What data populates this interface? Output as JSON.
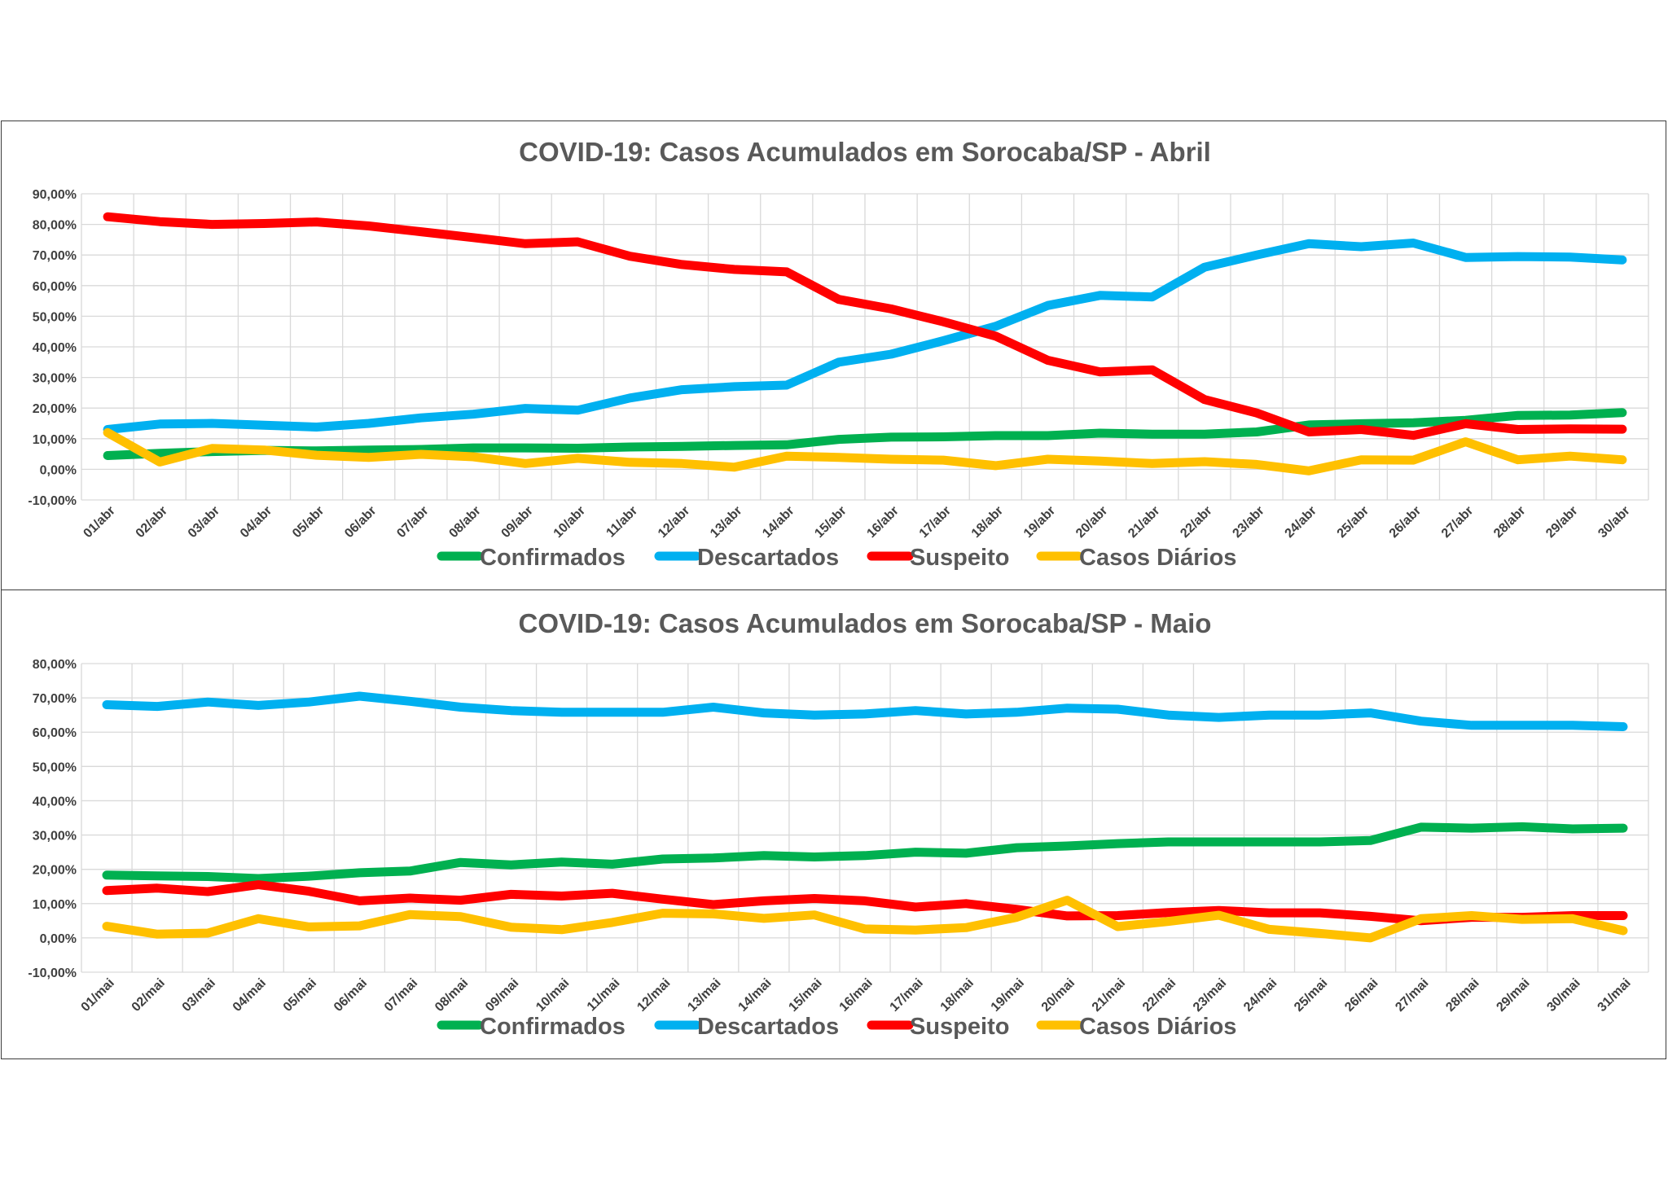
{
  "chart_data": [
    {
      "type": "line",
      "title": "COVID-19: Casos Acumulados em Sorocaba/SP - Abril",
      "xlabel": "",
      "ylabel": "",
      "ylim": [
        -10,
        90
      ],
      "yticks": [
        "90,00%",
        "80,00%",
        "70,00%",
        "60,00%",
        "50,00%",
        "40,00%",
        "30,00%",
        "20,00%",
        "10,00%",
        "0,00%",
        "-10,00%"
      ],
      "grid": true,
      "legend": "bottom",
      "categories": [
        "01/abr",
        "02/abr",
        "03/abr",
        "04/abr",
        "05/abr",
        "06/abr",
        "07/abr",
        "08/abr",
        "09/abr",
        "10/abr",
        "11/abr",
        "12/abr",
        "13/abr",
        "14/abr",
        "15/abr",
        "16/abr",
        "17/abr",
        "18/abr",
        "19/abr",
        "20/abr",
        "21/abr",
        "22/abr",
        "23/abr",
        "24/abr",
        "25/abr",
        "26/abr",
        "27/abr",
        "28/abr",
        "29/abr",
        "30/abr"
      ],
      "series": [
        {
          "name": "Confirmados",
          "color": "#00b050",
          "values": [
            4.5,
            5.2,
            5.8,
            6.2,
            6.0,
            6.3,
            6.5,
            7.0,
            7.0,
            6.9,
            7.3,
            7.5,
            7.8,
            8.0,
            9.8,
            10.5,
            10.6,
            11.0,
            11.0,
            11.8,
            11.5,
            11.5,
            12.2,
            14.5,
            14.9,
            15.2,
            16.0,
            17.6,
            17.7,
            18.5
          ]
        },
        {
          "name": "Descartados",
          "color": "#00b0f0",
          "values": [
            13.0,
            14.8,
            15.0,
            14.4,
            13.8,
            15.0,
            16.8,
            18.0,
            19.9,
            19.3,
            23.3,
            26.0,
            27.0,
            27.5,
            35.0,
            37.6,
            42.0,
            46.7,
            53.5,
            56.8,
            56.3,
            66.0,
            70.0,
            73.7,
            72.7,
            73.9,
            69.2,
            69.5,
            69.3,
            68.4
          ]
        },
        {
          "name": "Suspeito",
          "color": "#ff0000",
          "values": [
            82.5,
            80.9,
            80.0,
            80.3,
            80.8,
            79.5,
            77.6,
            75.7,
            73.7,
            74.3,
            69.6,
            66.9,
            65.3,
            64.5,
            55.5,
            52.4,
            48.2,
            43.5,
            35.6,
            31.8,
            32.5,
            22.8,
            18.4,
            12.2,
            13.0,
            11.1,
            14.9,
            13.0,
            13.2,
            13.1
          ]
        },
        {
          "name": "Casos Diários",
          "color": "#ffc000",
          "values": [
            12.0,
            2.4,
            6.8,
            6.3,
            4.6,
            3.9,
            4.9,
            4.1,
            1.9,
            3.6,
            2.3,
            1.9,
            0.7,
            4.3,
            3.9,
            3.3,
            3.0,
            1.2,
            3.3,
            2.7,
            1.9,
            2.5,
            1.6,
            -0.5,
            3.1,
            3.0,
            9.0,
            3.1,
            4.3,
            3.1
          ]
        }
      ]
    },
    {
      "type": "line",
      "title": "COVID-19: Casos Acumulados em Sorocaba/SP - Maio",
      "xlabel": "",
      "ylabel": "",
      "ylim": [
        -10,
        80
      ],
      "yticks": [
        "80,00%",
        "70,00%",
        "60,00%",
        "50,00%",
        "40,00%",
        "30,00%",
        "20,00%",
        "10,00%",
        "0,00%",
        "-10,00%"
      ],
      "grid": true,
      "legend": "bottom",
      "categories": [
        "01/mai",
        "02/mai",
        "03/mai",
        "04/mai",
        "05/mai",
        "06/mai",
        "07/mai",
        "08/mai",
        "09/mai",
        "10/mai",
        "11/mai",
        "12/mai",
        "13/mai",
        "14/mai",
        "15/mai",
        "16/mai",
        "17/mai",
        "18/mai",
        "19/mai",
        "20/mai",
        "21/mai",
        "22/mai",
        "23/mai",
        "24/mai",
        "25/mai",
        "26/mai",
        "27/mai",
        "28/mai",
        "29/mai",
        "30/mai",
        "31/mai"
      ],
      "series": [
        {
          "name": "Confirmados",
          "color": "#00b050",
          "values": [
            18.3,
            18.1,
            17.9,
            17.3,
            18.0,
            19.0,
            19.5,
            22.0,
            21.3,
            22.1,
            21.5,
            23.0,
            23.3,
            24.0,
            23.6,
            24.0,
            25.0,
            24.7,
            26.3,
            26.8,
            27.5,
            28.0,
            28.0,
            28.0,
            28.0,
            28.4,
            32.3,
            32.0,
            32.4,
            31.8,
            32.0
          ]
        },
        {
          "name": "Descartados",
          "color": "#00b0f0",
          "values": [
            68.0,
            67.5,
            68.8,
            67.8,
            68.8,
            70.5,
            69.0,
            67.3,
            66.3,
            65.8,
            65.8,
            65.8,
            67.3,
            65.6,
            65.0,
            65.3,
            66.3,
            65.3,
            65.8,
            67.0,
            66.7,
            65.0,
            64.3,
            65.0,
            65.0,
            65.6,
            63.2,
            62.0,
            62.0,
            62.0,
            61.6
          ]
        },
        {
          "name": "Suspeito",
          "color": "#ff0000",
          "values": [
            13.8,
            14.5,
            13.5,
            15.5,
            13.6,
            10.8,
            11.6,
            11.0,
            12.7,
            12.2,
            13.0,
            11.3,
            9.7,
            10.8,
            11.5,
            10.8,
            9.0,
            10.0,
            8.3,
            6.4,
            6.5,
            7.4,
            8.0,
            7.3,
            7.3,
            6.3,
            5.0,
            6.0,
            6.0,
            6.5,
            6.5
          ]
        },
        {
          "name": "Casos Diários",
          "color": "#ffc000",
          "values": [
            3.4,
            1.1,
            1.4,
            5.6,
            3.2,
            3.5,
            6.8,
            6.2,
            3.1,
            2.4,
            4.5,
            7.2,
            7.0,
            5.7,
            6.7,
            2.6,
            2.3,
            3.0,
            6.0,
            11.0,
            3.3,
            4.8,
            6.6,
            2.5,
            1.3,
            0.0,
            5.6,
            6.5,
            5.4,
            5.6,
            2.1
          ]
        }
      ]
    }
  ]
}
